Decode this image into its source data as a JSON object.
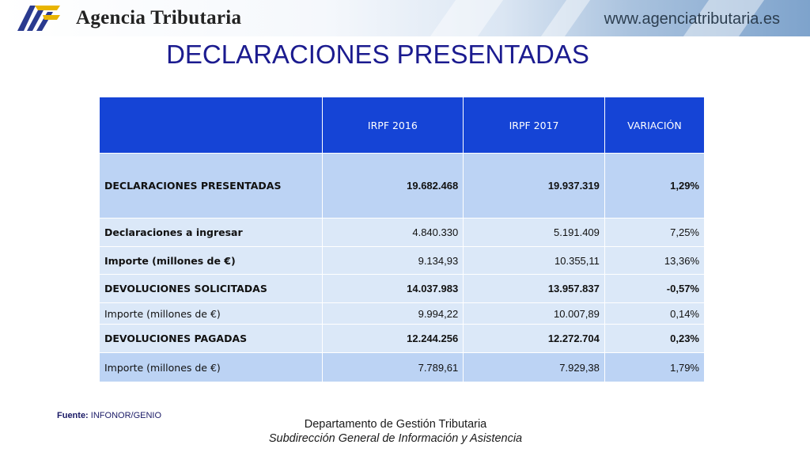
{
  "header": {
    "org_name": "Agencia Tributaria",
    "url": "www.agenciatributaria.es"
  },
  "title": "DECLARACIONES PRESENTADAS",
  "table": {
    "headers": [
      "",
      "IRPF  2016",
      "IRPF 2017",
      "VARIACIÓN"
    ],
    "rows": [
      {
        "label": "DECLARACIONES PRESENTADAS",
        "v2016": "19.682.468",
        "v2017": "19.937.319",
        "variation": "1,29%"
      },
      {
        "label": "Declaraciones a ingresar",
        "v2016": "4.840.330",
        "v2017": "5.191.409",
        "variation": "7,25%"
      },
      {
        "label": "Importe (millones de €)",
        "v2016": "9.134,93",
        "v2017": "10.355,11",
        "variation": "13,36%"
      },
      {
        "label": "DEVOLUCIONES SOLICITADAS",
        "v2016": "14.037.983",
        "v2017": "13.957.837",
        "variation": "-0,57%"
      },
      {
        "label": "Importe (millones de €)",
        "v2016": "9.994,22",
        "v2017": "10.007,89",
        "variation": "0,14%"
      },
      {
        "label": "DEVOLUCIONES PAGADAS",
        "v2016": "12.244.256",
        "v2017": "12.272.704",
        "variation": "0,23%"
      },
      {
        "label": "Importe (millones de €)",
        "v2016": "7.789,61",
        "v2017": "7.929,38",
        "variation": "1,79%"
      }
    ]
  },
  "footer": {
    "source_label": "Fuente:",
    "source_value": "INFONOR/GENIO",
    "department": "Departamento de Gestión Tributaria",
    "subdirection": "Subdirección General de Información y Asistencia"
  },
  "colors": {
    "header_blue": "#1544d6",
    "title_blue": "#1b1b8f",
    "row_dark": "#bcd3f4",
    "row_light": "#dbe8f8"
  }
}
